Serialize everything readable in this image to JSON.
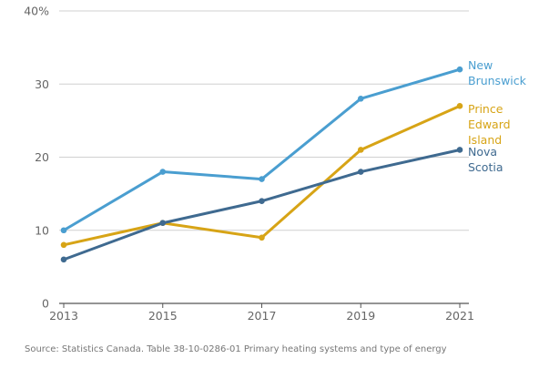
{
  "chart_data": {
    "type": "line",
    "x": [
      2013,
      2015,
      2017,
      2019,
      2021
    ],
    "x_tick_labels": [
      "2013",
      "2015",
      "2017",
      "2019",
      "2021"
    ],
    "y_tick_labels": [
      "40%",
      "30",
      "20",
      "10",
      "0"
    ],
    "ylim": [
      0,
      40
    ],
    "y_ticks": [
      40,
      30,
      20,
      10,
      0
    ],
    "grid": "horizontal",
    "series": [
      {
        "name": "New Brunswick",
        "label_lines": [
          "New",
          "Brunswick"
        ],
        "values": [
          10,
          18,
          17,
          28,
          32
        ],
        "color": "#4a9ed0"
      },
      {
        "name": "Prince Edward Island",
        "label_lines": [
          "Prince",
          "Edward",
          "Island"
        ],
        "values": [
          8,
          11,
          9,
          21,
          27
        ],
        "color": "#d7a416"
      },
      {
        "name": "Nova Scotia",
        "label_lines": [
          "Nova",
          "Scotia"
        ],
        "values": [
          6,
          11,
          14,
          18,
          21
        ],
        "color": "#3f6a90"
      }
    ],
    "source": "Source: Statistics Canada. Table 38-10-0286-01 Primary heating systems and type of energy"
  }
}
